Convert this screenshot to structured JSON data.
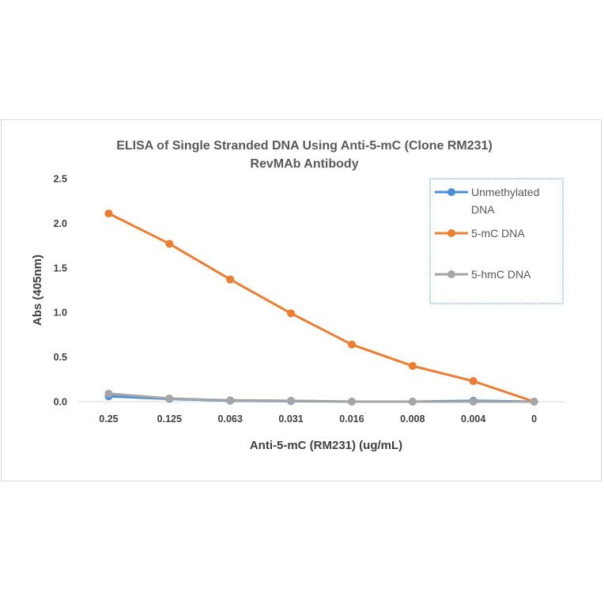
{
  "chart_data": {
    "type": "line",
    "title_lines": [
      "ELISA of Single Stranded DNA Using Anti-5-mC (Clone RM231)",
      "RevMAb Antibody"
    ],
    "xlabel": "Anti-5-mC (RM231) (ug/mL)",
    "ylabel": "Abs (405nm)",
    "categories": [
      "0.25",
      "0.125",
      "0.063",
      "0.031",
      "0.016",
      "0.008",
      "0.004",
      "0"
    ],
    "ylim": [
      0,
      2.5
    ],
    "yticks": [
      0.0,
      0.5,
      1.0,
      1.5,
      2.0,
      2.5
    ],
    "ytick_labels": [
      "0.0",
      "0.5",
      "1.0",
      "1.5",
      "2.0",
      "2.5"
    ],
    "grid": false,
    "legend": "top-right",
    "series": [
      {
        "name_lines": [
          "Unmethylated",
          "DNA"
        ],
        "color": "#4a90d9",
        "values": [
          0.06,
          0.03,
          0.01,
          0.005,
          0.0,
          0.0,
          0.01,
          0.0
        ]
      },
      {
        "name_lines": [
          "5-mC DNA"
        ],
        "color": "#ed7d31",
        "values": [
          2.11,
          1.77,
          1.37,
          0.99,
          0.64,
          0.4,
          0.23,
          0.0
        ]
      },
      {
        "name_lines": [
          "5-hmC DNA"
        ],
        "color": "#a5a5a5",
        "values": [
          0.09,
          0.035,
          0.015,
          0.01,
          0.0,
          0.0,
          0.0,
          0.0
        ]
      }
    ]
  }
}
